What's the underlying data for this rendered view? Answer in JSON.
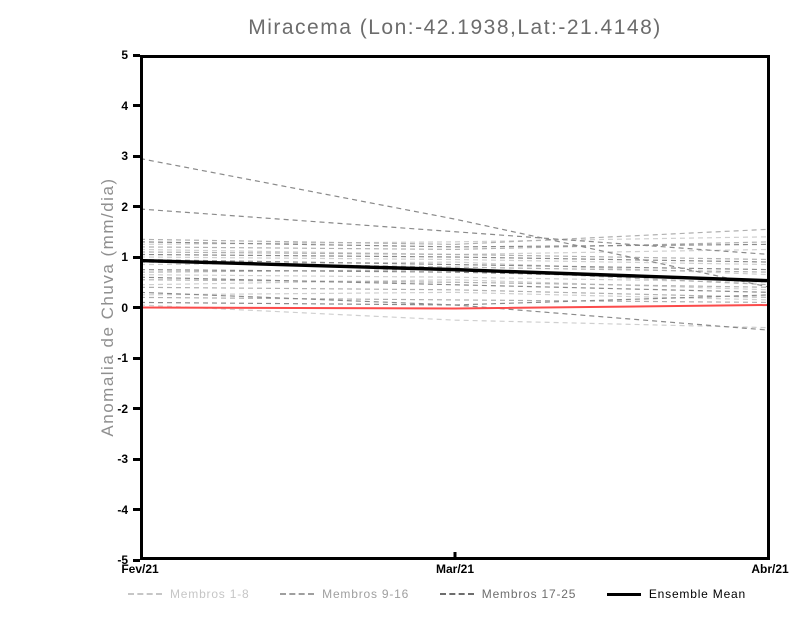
{
  "chart_data": {
    "type": "line",
    "title": "Miracema (Lon:-42.1938,Lat:-21.4148)",
    "ylabel": "Anomalia de Chuva (mm/dia)",
    "xlabel": "",
    "x_categories": [
      "Fev/21",
      "Mar/21",
      "Abr/21"
    ],
    "yticks": [
      5,
      4,
      3,
      2,
      1,
      0,
      -1,
      -2,
      -3,
      -4,
      -5
    ],
    "ylim": [
      -5,
      5
    ],
    "grid": false,
    "legend_position": "bottom",
    "groups": [
      {
        "name": "Membros 1-8",
        "color": "#cfcfcf",
        "line_style": "dashed"
      },
      {
        "name": "Membros 9-16",
        "color": "#b0b0b0",
        "line_style": "dashed"
      },
      {
        "name": "Membros 17-25",
        "color": "#8a8a8a",
        "line_style": "dashed"
      }
    ],
    "members": [
      {
        "group": 0,
        "values": [
          1.25,
          1.3,
          1.4
        ]
      },
      {
        "group": 0,
        "values": [
          1.15,
          1.05,
          1.15
        ]
      },
      {
        "group": 0,
        "values": [
          1.0,
          0.95,
          0.85
        ]
      },
      {
        "group": 0,
        "values": [
          0.85,
          0.9,
          0.65
        ]
      },
      {
        "group": 0,
        "values": [
          0.65,
          0.6,
          0.5
        ]
      },
      {
        "group": 0,
        "values": [
          0.45,
          0.55,
          0.35
        ]
      },
      {
        "group": 0,
        "values": [
          0.25,
          0.3,
          0.15
        ]
      },
      {
        "group": 0,
        "values": [
          0.05,
          -0.25,
          -0.4
        ]
      },
      {
        "group": 1,
        "values": [
          1.35,
          1.25,
          1.55
        ]
      },
      {
        "group": 1,
        "values": [
          1.2,
          1.15,
          1.3
        ]
      },
      {
        "group": 1,
        "values": [
          1.1,
          1.05,
          0.95
        ]
      },
      {
        "group": 1,
        "values": [
          0.9,
          0.8,
          0.7
        ]
      },
      {
        "group": 1,
        "values": [
          0.7,
          0.75,
          0.45
        ]
      },
      {
        "group": 1,
        "values": [
          0.55,
          0.5,
          0.4
        ]
      },
      {
        "group": 1,
        "values": [
          0.4,
          0.35,
          0.2
        ]
      },
      {
        "group": 1,
        "values": [
          0.2,
          0.15,
          0.1
        ]
      },
      {
        "group": 2,
        "values": [
          2.95,
          1.75,
          0.4
        ]
      },
      {
        "group": 2,
        "values": [
          1.95,
          1.5,
          1.05
        ]
      },
      {
        "group": 2,
        "values": [
          1.3,
          1.2,
          1.25
        ]
      },
      {
        "group": 2,
        "values": [
          1.05,
          1.0,
          0.9
        ]
      },
      {
        "group": 2,
        "values": [
          0.95,
          0.85,
          0.75
        ]
      },
      {
        "group": 2,
        "values": [
          0.75,
          0.7,
          0.55
        ]
      },
      {
        "group": 2,
        "values": [
          0.6,
          0.45,
          0.3
        ]
      },
      {
        "group": 2,
        "values": [
          0.3,
          0.05,
          -0.45
        ]
      },
      {
        "group": 2,
        "values": [
          0.1,
          0.05,
          0.25
        ]
      }
    ],
    "ensemble_mean": {
      "name": "Ensemble Mean",
      "color": "#000000",
      "values": [
        0.93,
        0.75,
        0.53
      ]
    },
    "zero_line": {
      "color": "#fb4b4b",
      "values": [
        0.0,
        -0.02,
        0.05
      ]
    },
    "legend": [
      {
        "label": "Membros 1-8",
        "color": "#c6c6c6",
        "style": "dashed"
      },
      {
        "label": "Membros 9-16",
        "color": "#9f9f9f",
        "style": "dashed"
      },
      {
        "label": "Membros 17-25",
        "color": "#6d6d6d",
        "style": "dashed"
      },
      {
        "label": "Ensemble Mean",
        "color": "#000000",
        "style": "solid"
      }
    ]
  }
}
